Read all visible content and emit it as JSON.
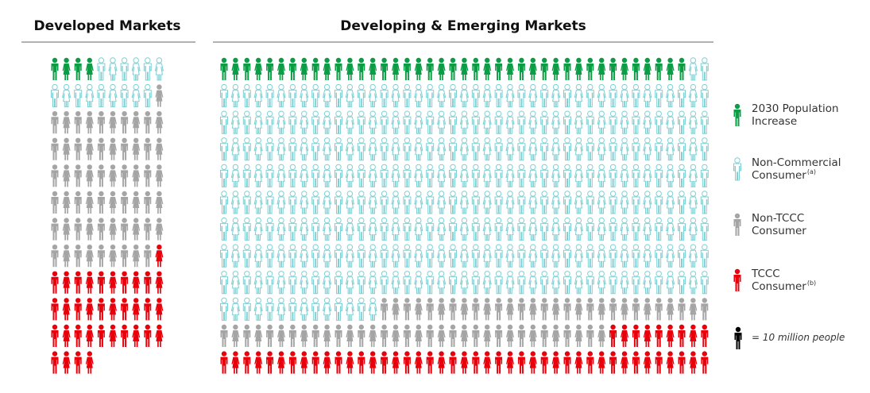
{
  "chart_data": {
    "type": "pictogram",
    "series": [
      {
        "label": [
          "2030 Population",
          "Increase"
        ],
        "color": "#0b9c45",
        "style": "solid"
      },
      {
        "label": [
          "Non-Commercial",
          "Consumer"
        ],
        "note": "(a)",
        "color": "#7fd0d4",
        "style": "outline"
      },
      {
        "label": [
          "Non-TCCC",
          "Consumer"
        ],
        "color": "#a5a5a5",
        "style": "solid"
      },
      {
        "label": [
          "TCCC",
          "Consumer"
        ],
        "note": "(b)",
        "color": "#e8000b",
        "style": "solid"
      }
    ],
    "panels": [
      {
        "title": "Developed Markets",
        "values": [
          4,
          15,
          60,
          35
        ]
      },
      {
        "title": "Developing & Emerging Markets",
        "values": [
          41,
          360,
          63,
          52
        ]
      }
    ],
    "unit_label": "= 10 million people",
    "unit_color": "#000000"
  }
}
